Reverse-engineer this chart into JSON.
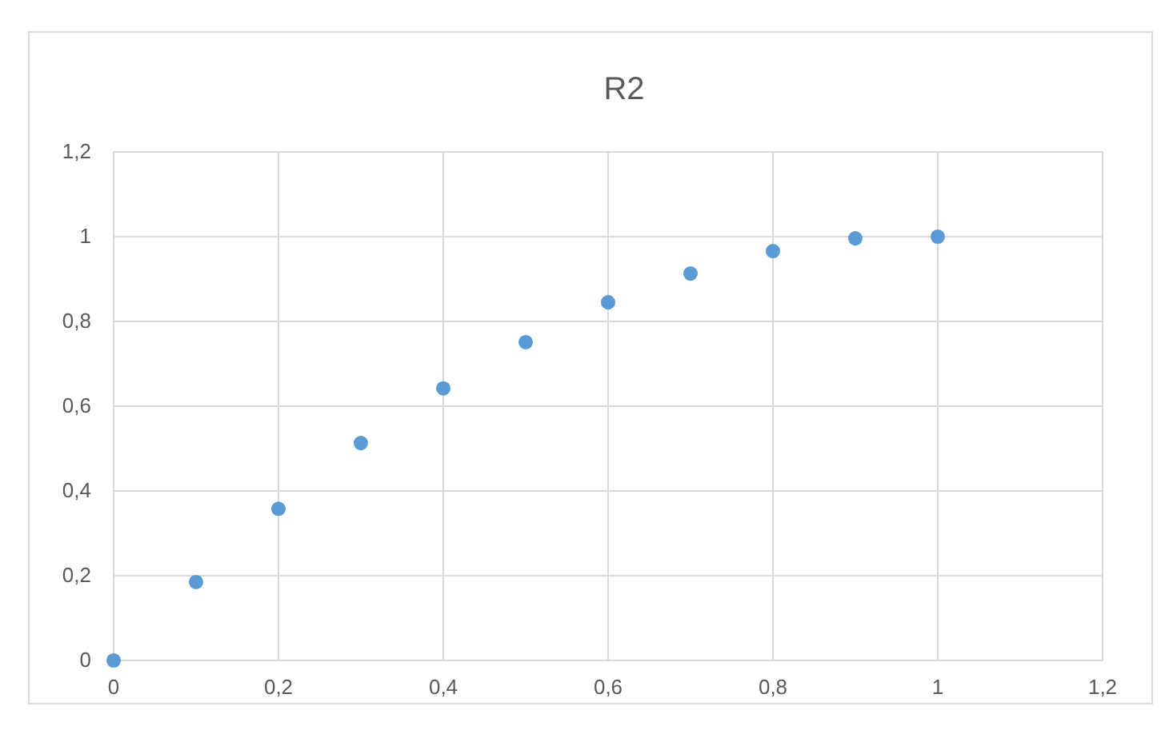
{
  "chart_data": {
    "type": "scatter",
    "title": "R2",
    "x": [
      0,
      0.1,
      0.2,
      0.3,
      0.4,
      0.5,
      0.6,
      0.7,
      0.8,
      0.9,
      1
    ],
    "series": [
      {
        "color": "#5b9bd5",
        "values": [
          0,
          0.185,
          0.358,
          0.513,
          0.642,
          0.751,
          0.845,
          0.913,
          0.966,
          0.996,
          1
        ]
      }
    ],
    "xlim": [
      0,
      1.2
    ],
    "ylim": [
      0,
      1.2
    ],
    "xticks": [
      0,
      {
        "value": 0.2,
        "label": "0,2"
      },
      {
        "value": 0.4,
        "label": "0,4"
      },
      {
        "value": 0.6,
        "label": "0,6"
      },
      {
        "value": 0.8,
        "label": "0,8"
      },
      1,
      {
        "value": 1.2,
        "label": "1,2"
      }
    ],
    "yticks": [
      0,
      {
        "value": 0.2,
        "label": "0,2"
      },
      {
        "value": 0.4,
        "label": "0,4"
      },
      {
        "value": 0.6,
        "label": "0,6"
      },
      {
        "value": 0.8,
        "label": "0,8"
      },
      1,
      {
        "value": 1.2,
        "label": "1,2"
      }
    ],
    "grid": true,
    "marker": "circle"
  }
}
